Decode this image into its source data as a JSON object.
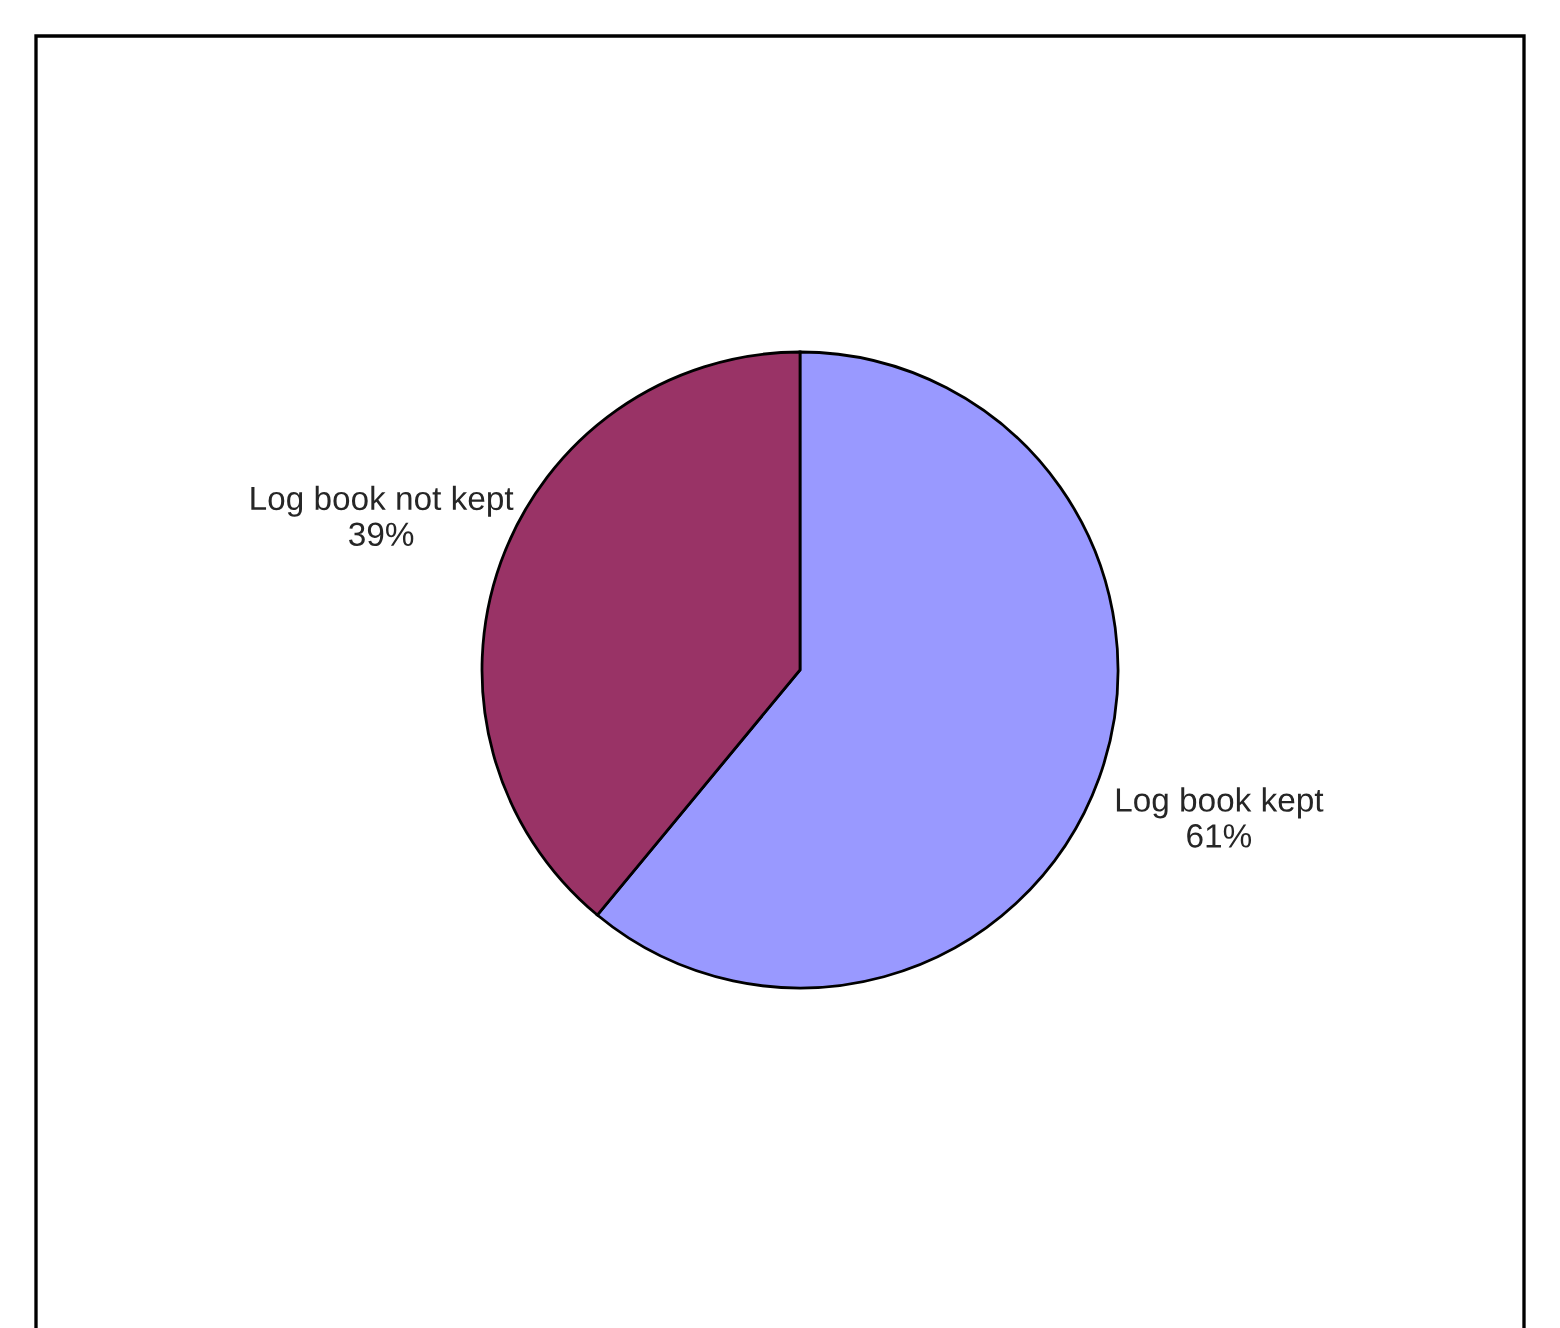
{
  "chart_data": {
    "type": "pie",
    "categories": [
      "Log book kept",
      "Log book not kept"
    ],
    "values": [
      61,
      39
    ],
    "colors": [
      "#9999ff",
      "#993366"
    ],
    "value_labels": [
      "61%",
      "39%"
    ],
    "legend": false
  }
}
